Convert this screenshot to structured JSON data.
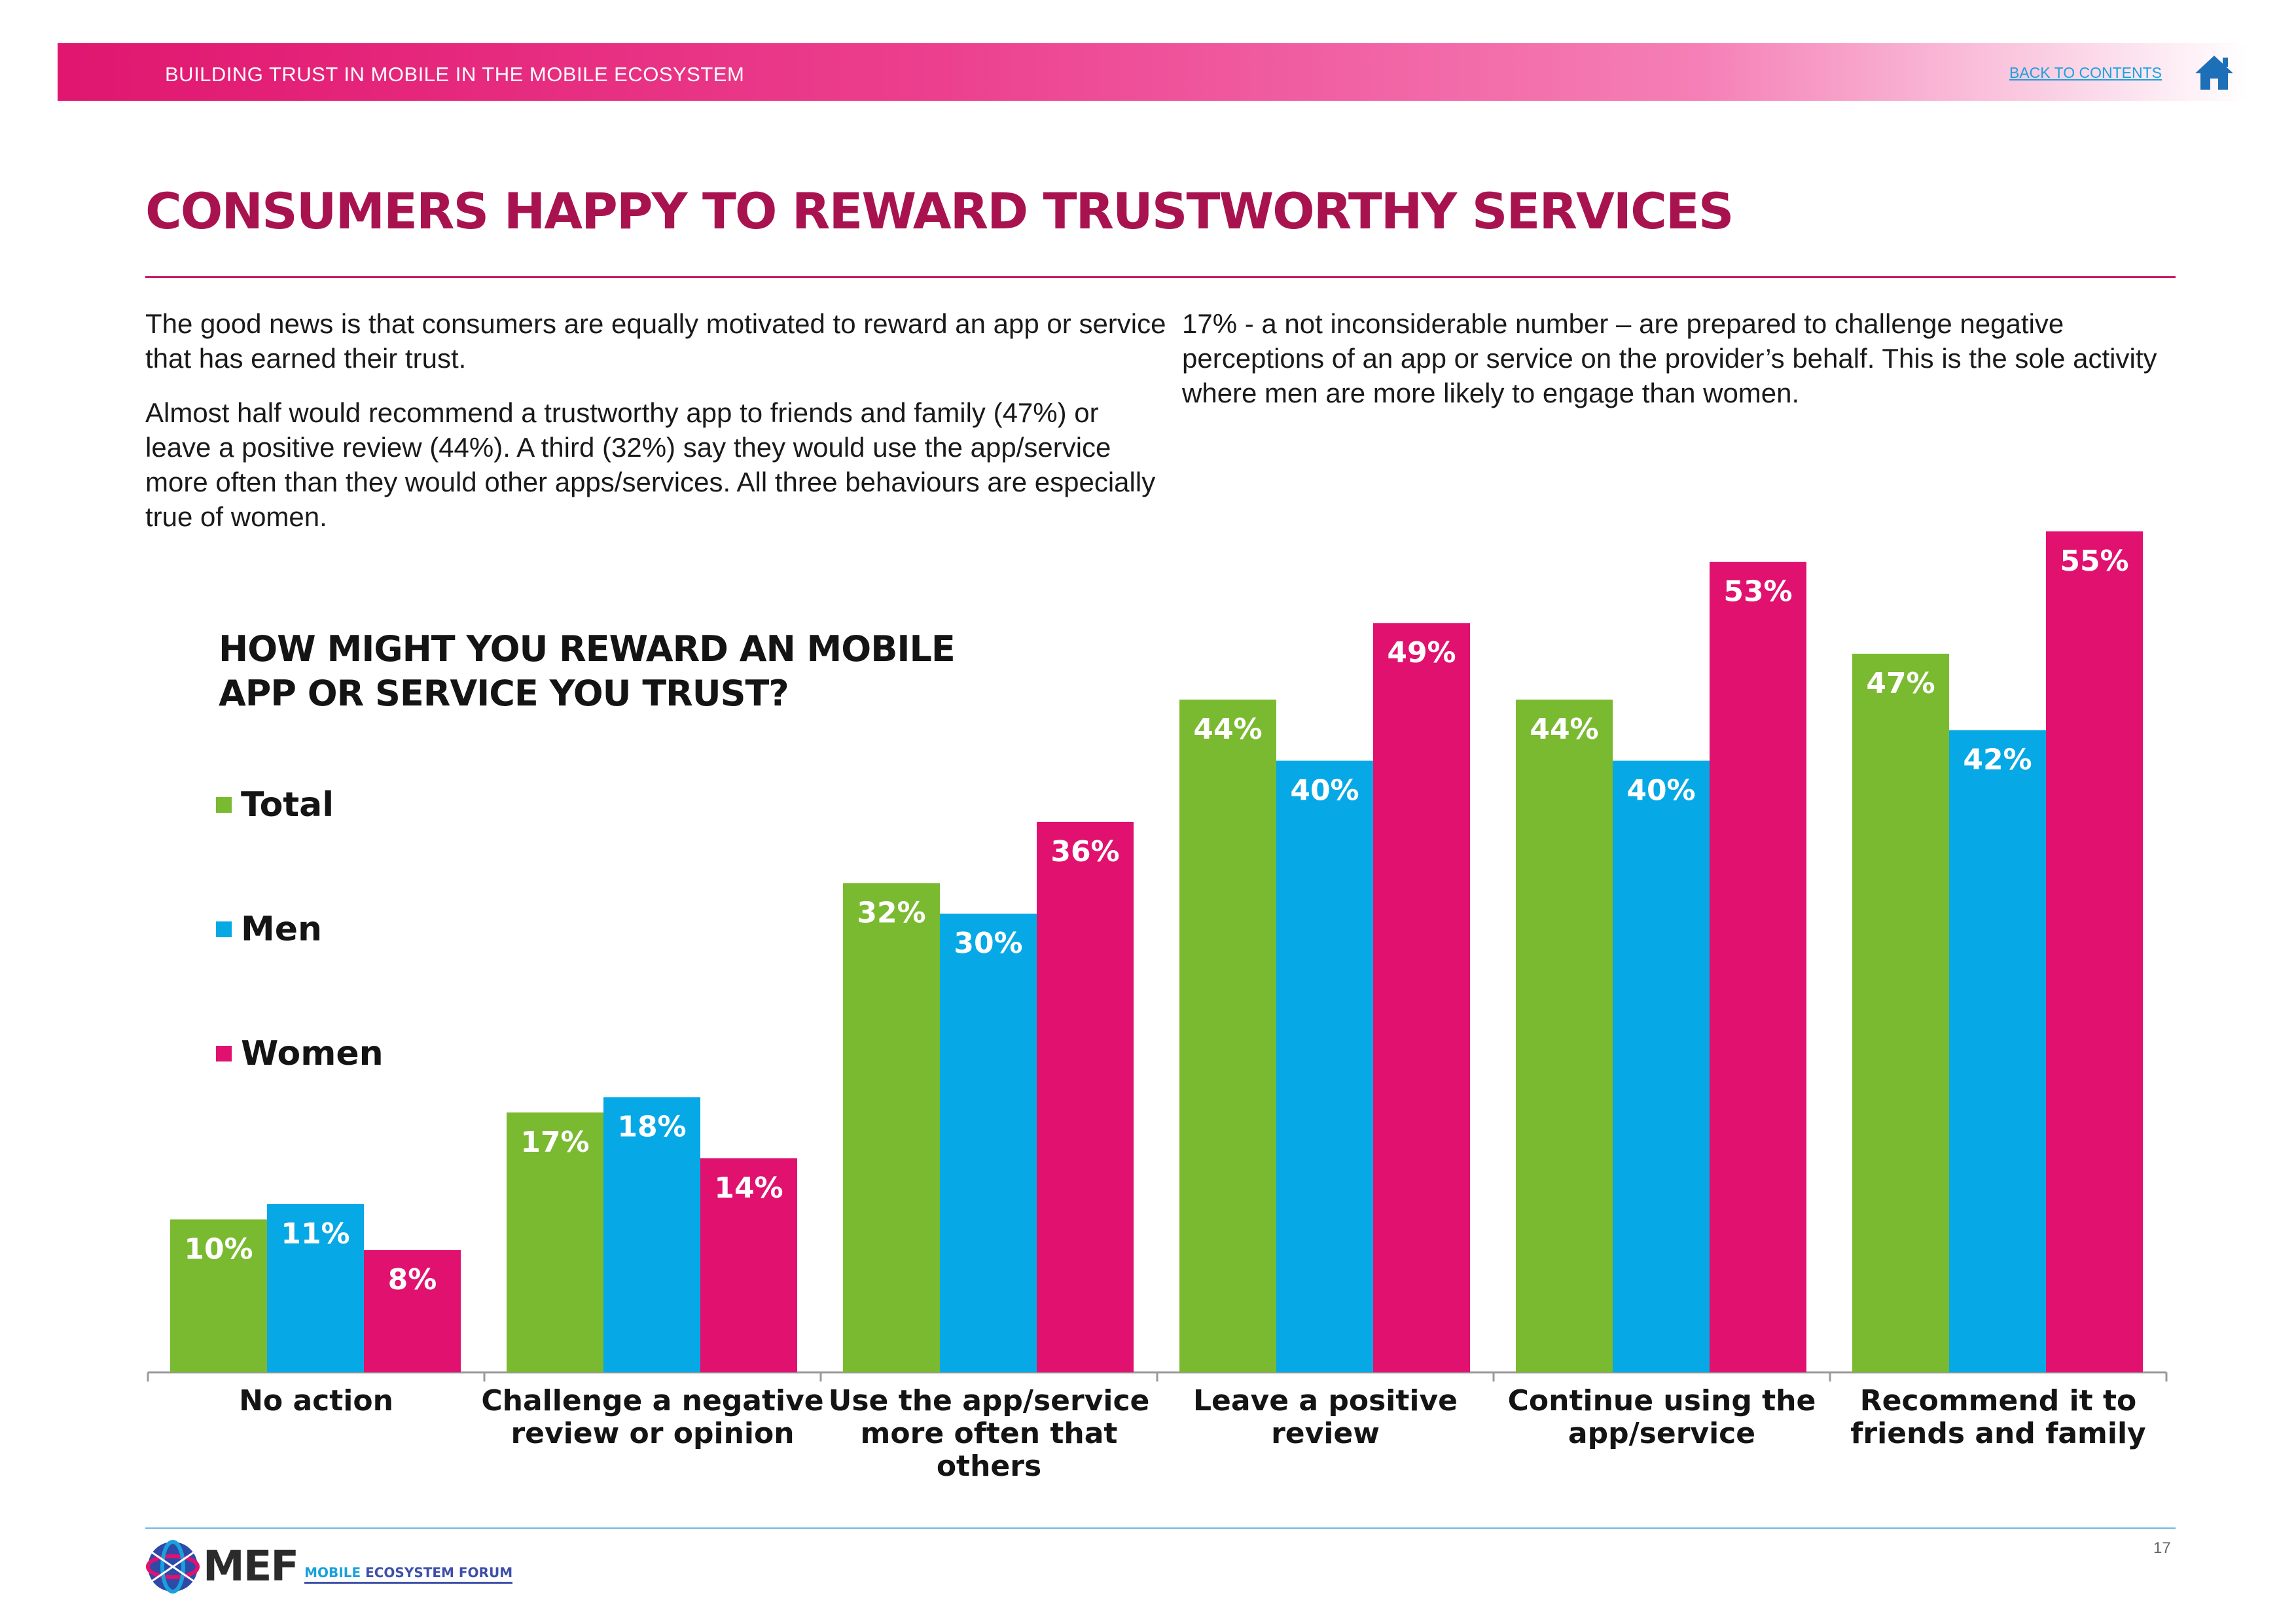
{
  "header": {
    "title": "BUILDING TRUST IN MOBILE IN THE MOBILE ECOSYSTEM",
    "back_link": "BACK TO CONTENTS",
    "home_icon": "home-icon"
  },
  "page": {
    "title": "CONSUMERS HAPPY TO REWARD TRUSTWORTHY SERVICES",
    "page_number": "17"
  },
  "body": {
    "left_paragraphs": [
      "The good news is that consumers are equally motivated to reward an app or service that has earned their trust.",
      "Almost half would recommend a trustworthy app to friends and family (47%) or leave a positive review (44%). A third (32%) say they would use the app/service more often than they would other apps/services. All three behaviours are especially true of women."
    ],
    "right_paragraphs": [
      "17% - a not inconsiderable number – are prepared to challenge negative perceptions of an app or service on the provider’s behalf. This is the sole activity where men are more likely to engage than women."
    ]
  },
  "chart_data": {
    "type": "bar",
    "title": "HOW MIGHT YOU REWARD AN MOBILE APP OR SERVICE YOU TRUST?",
    "title_lines": [
      "HOW MIGHT YOU REWARD AN MOBILE",
      "APP OR SERVICE YOU TRUST?"
    ],
    "categories": [
      "No action",
      "Challenge a negative review or opinion",
      "Use the app/service more often that others",
      "Leave a positive review",
      "Continue using the app/service",
      "Recommend it to friends and family"
    ],
    "category_lines": [
      [
        "No action"
      ],
      [
        "Challenge a negative",
        "review or opinion"
      ],
      [
        "Use the app/service",
        "more often that",
        "others"
      ],
      [
        "Leave a positive",
        "review"
      ],
      [
        "Continue using the",
        "app/service"
      ],
      [
        "Recommend it to",
        "friends and family"
      ]
    ],
    "series": [
      {
        "name": "Total",
        "color": "#7aba30",
        "values": [
          10,
          17,
          32,
          44,
          44,
          47
        ],
        "labels": [
          "10%",
          "17%",
          "32%",
          "44%",
          "44%",
          "47%"
        ]
      },
      {
        "name": "Men",
        "color": "#06a8e6",
        "values": [
          11,
          18,
          30,
          40,
          40,
          42
        ],
        "labels": [
          "11%",
          "18%",
          "30%",
          "40%",
          "40%",
          "42%"
        ]
      },
      {
        "name": "Women",
        "color": "#e0116f",
        "values": [
          8,
          14,
          36,
          49,
          53,
          55
        ],
        "labels": [
          "8%",
          "14%",
          "36%",
          "49%",
          "53%",
          "55%"
        ]
      }
    ],
    "ylim": [
      0,
      55
    ],
    "unit": "%",
    "legend_position": "left",
    "grid": false,
    "xlabel": "",
    "ylabel": ""
  },
  "footer": {
    "logo_text": "MEF",
    "logo_subtitle_part1": "MOBILE",
    "logo_subtitle_part2": " ECOSYSTEM FORUM"
  }
}
